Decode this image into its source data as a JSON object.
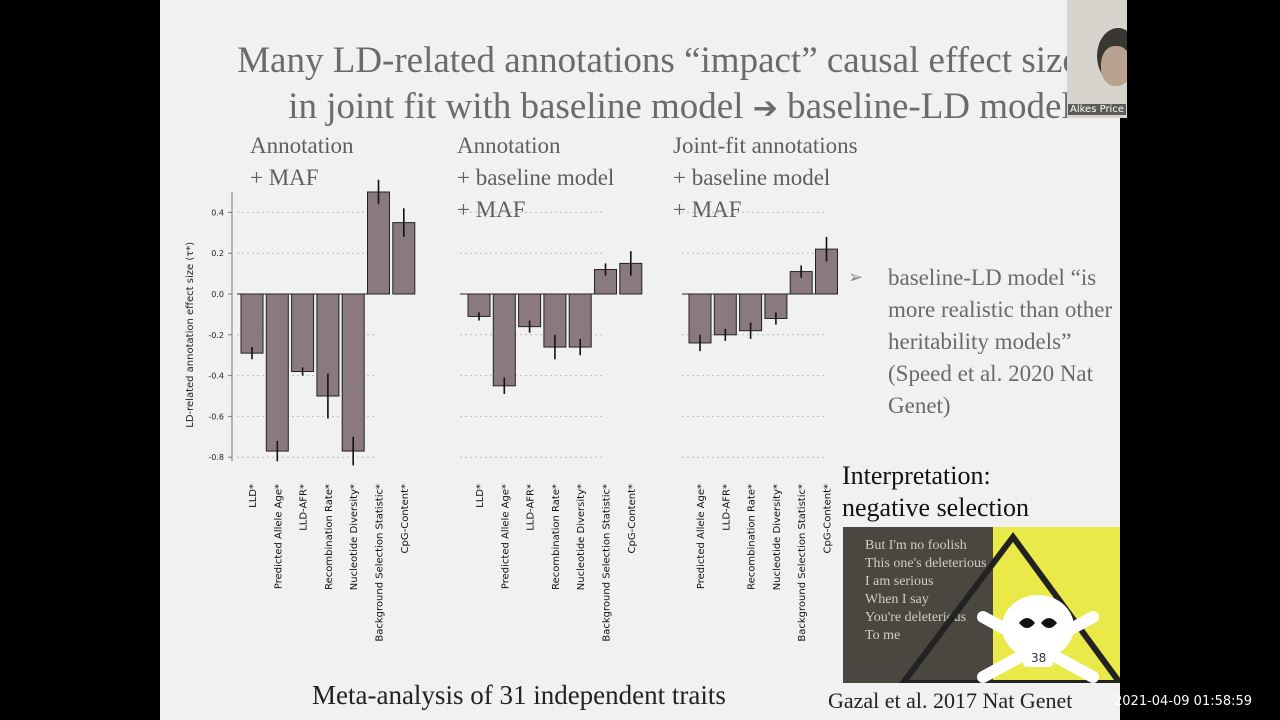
{
  "slide": {
    "title_line1": "Many LD-related annotations “impact” causal effect size",
    "title_line2a": "in joint fit with baseline model",
    "title_arrow": "➔",
    "title_line2b": "baseline-LD model",
    "panel_titles": [
      [
        "Annotation",
        "+ MAF"
      ],
      [
        "Annotation",
        "+ baseline model",
        "+ MAF"
      ],
      [
        "Joint-fit annotations",
        "+ baseline model",
        "+ MAF"
      ]
    ],
    "bullet_marker": "➢",
    "bullet_text": "baseline-LD model “is more realistic than other heritability models” (Speed et al. 2020 Nat Genet)",
    "interpretation_line1": "Interpretation:",
    "interpretation_line2": "negative selection",
    "poster_lines": [
      "But I'm no foolish",
      "This one's deleterious",
      "I am serious",
      "When I say",
      "You're deleterious",
      "To me"
    ],
    "poster_page": "38",
    "footer_meta": "Meta-analysis of 31 independent traits",
    "footer_citation": "Gazal et al. 2017 Nat Genet"
  },
  "webcam": {
    "name": "Alkes Price"
  },
  "timestamp": "2021-04-09  01:58:59",
  "colors": {
    "bar": "#8a7a80",
    "background": "#f1f1f1",
    "black_frame": "#000000"
  },
  "chart_data": [
    {
      "type": "bar",
      "ylabel": "LD-related annotation effect size (τ*)",
      "ylim": [
        -0.85,
        0.5
      ],
      "yticks": [
        0.4,
        0.2,
        0.0,
        -0.2,
        -0.4,
        -0.6,
        -0.8
      ],
      "ytick_labels": [
        "0.4",
        "0.2",
        "0.0",
        "-0.2",
        "-0.4",
        "-0.6",
        "-0.8"
      ],
      "categories": [
        "LLD*",
        "Predicted Allele Age*",
        "LLD-AFR*",
        "Recombination Rate*",
        "Nucleotide Diversity*",
        "Background Selection Statistic*",
        "CpG-Content*"
      ],
      "values": [
        -0.29,
        -0.77,
        -0.38,
        -0.5,
        -0.77,
        0.5,
        0.35
      ],
      "errors": [
        0.03,
        0.05,
        0.02,
        0.11,
        0.07,
        0.06,
        0.07
      ]
    },
    {
      "type": "bar",
      "categories": [
        "LLD*",
        "Predicted Allele Age*",
        "LLD-AFR*",
        "Recombination Rate*",
        "Nucleotide Diversity*",
        "Background Selection Statistic*",
        "CpG-Content*"
      ],
      "values": [
        -0.11,
        -0.45,
        -0.16,
        -0.26,
        -0.26,
        0.12,
        0.15
      ],
      "errors": [
        0.02,
        0.04,
        0.03,
        0.06,
        0.04,
        0.03,
        0.06
      ]
    },
    {
      "type": "bar",
      "categories": [
        "Predicted Allele Age*",
        "LLD-AFR*",
        "Recombination Rate*",
        "Nucleotide Diversity*",
        "Background Selection Statistic*",
        "CpG-Content*"
      ],
      "values": [
        -0.24,
        -0.2,
        -0.18,
        -0.12,
        0.11,
        0.22
      ],
      "errors": [
        0.04,
        0.03,
        0.04,
        0.03,
        0.03,
        0.06
      ]
    }
  ]
}
